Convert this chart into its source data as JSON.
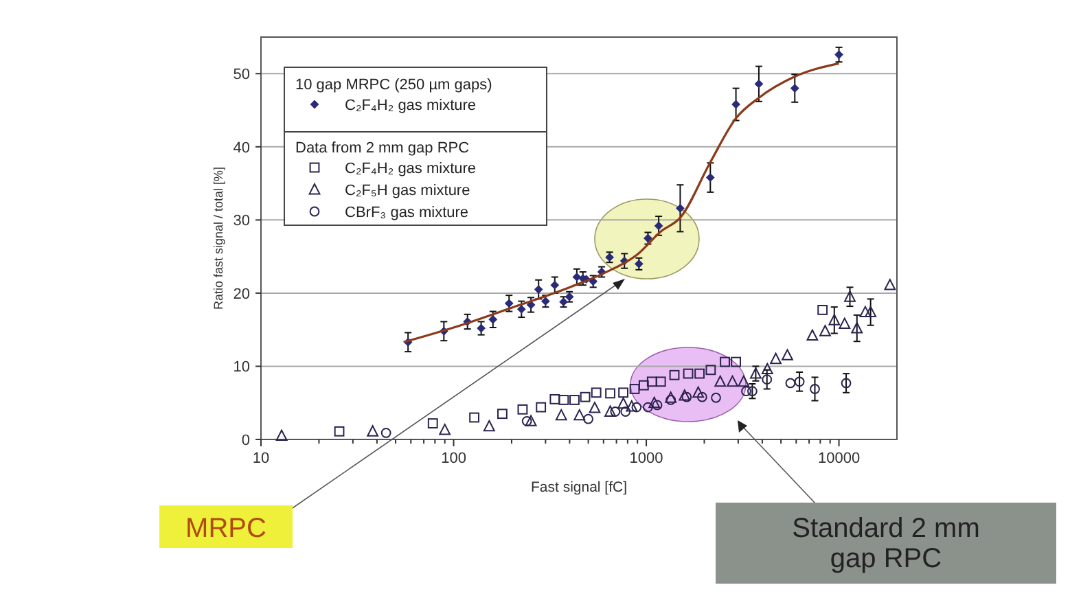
{
  "chart_data": {
    "type": "scatter",
    "xlabel": "Fast signal [fC]",
    "ylabel": "Ratio fast signal / total [%]",
    "log": "x",
    "grid": "y",
    "legend": "top left",
    "legend_title": "10 gap MRPC (250 µm gaps)",
    "xlim": [
      10,
      20000
    ],
    "ylim": [
      0,
      55
    ],
    "xticks": [
      10,
      {
        "value": 20,
        "label": null
      },
      {
        "value": 30,
        "label": null
      },
      {
        "value": 40,
        "label": null
      },
      {
        "value": 50,
        "label": null
      },
      {
        "value": 60,
        "label": null
      },
      {
        "value": 70,
        "label": null
      },
      {
        "value": 80,
        "label": null
      },
      {
        "value": 90,
        "label": null
      },
      100,
      {
        "value": 200,
        "label": null
      },
      {
        "value": 300,
        "label": null
      },
      {
        "value": 400,
        "label": null
      },
      {
        "value": 500,
        "label": null
      },
      {
        "value": 600,
        "label": null
      },
      {
        "value": 700,
        "label": null
      },
      {
        "value": 800,
        "label": null
      },
      {
        "value": 900,
        "label": null
      },
      1000,
      {
        "value": 2000,
        "label": null
      },
      {
        "value": 3000,
        "label": null
      },
      {
        "value": 4000,
        "label": null
      },
      {
        "value": 5000,
        "label": null
      },
      {
        "value": 6000,
        "label": null
      },
      {
        "value": 7000,
        "label": null
      },
      {
        "value": 8000,
        "label": null
      },
      {
        "value": 9000,
        "label": null
      },
      10000
    ],
    "yticks": [
      0,
      10,
      20,
      30,
      40,
      50
    ],
    "annotations": [
      "Data from 2 mm gap RPC",
      "MRPC",
      "Standard 2 mm gap RPC"
    ],
    "series": [
      {
        "name": "C₂F₄H₂ gas mixture",
        "color": "#2a2a7a",
        "marker": "diamond",
        "x": [
          58,
          89,
          118,
          139,
          160,
          194,
          225,
          252,
          276,
          300,
          335,
          372,
          399,
          436,
          469,
          488,
          530,
          587,
          645,
          770,
          916,
          1020,
          1160,
          1500,
          2150,
          2920,
          3840,
          5900,
          10000
        ],
        "values": [
          13.3,
          14.8,
          16.1,
          15.2,
          16.4,
          18.6,
          17.8,
          18.4,
          20.5,
          18.9,
          21.1,
          18.8,
          19.5,
          22.2,
          22.0,
          21.9,
          21.6,
          22.9,
          24.9,
          24.4,
          24.0,
          27.5,
          29.2,
          31.6,
          35.8,
          45.8,
          48.6,
          48.0,
          52.6
        ],
        "errors": [
          1.3,
          1.3,
          1,
          0.9,
          1.1,
          1.1,
          1.1,
          1,
          1.3,
          0.8,
          1.1,
          0.7,
          0.7,
          1.1,
          0.9,
          null,
          0.8,
          0.7,
          0.7,
          1,
          0.8,
          0.8,
          1.3,
          3.2,
          2,
          2.2,
          2.4,
          1.9,
          1
        ]
      },
      {
        "type": "line",
        "color": "#8b3a1a",
        "marker": "none",
        "x": [
          55,
          100,
          200,
          400,
          600,
          900,
          1200,
          1500,
          2150,
          2920,
          3840,
          5900,
          10000
        ],
        "values": [
          13.3,
          15.3,
          18.0,
          20.8,
          22.7,
          25.3,
          28.5,
          30.3,
          37.9,
          43.9,
          46.7,
          49.6,
          51.4
        ]
      },
      {
        "name": "C₂F₄H₂ gas mixture",
        "color": "#2a2250",
        "marker": "square",
        "x": [
          25.5,
          78,
          128,
          179,
          228,
          284,
          335,
          373,
          424,
          482,
          550,
          650,
          760,
          870,
          970,
          1070,
          1190,
          1400,
          1650,
          1890,
          2160,
          2560,
          2920,
          8220
        ],
        "values": [
          1.1,
          2.2,
          3.0,
          3.5,
          4.1,
          4.4,
          5.5,
          5.4,
          5.4,
          5.8,
          6.4,
          6.3,
          6.4,
          6.9,
          7.4,
          7.9,
          7.9,
          8.8,
          9.0,
          9.0,
          9.5,
          10.6,
          10.6,
          17.7
        ]
      },
      {
        "name": "C₂F₅H gas mixture",
        "color": "#2a2250",
        "marker": "triangle",
        "x": [
          12.8,
          38,
          90,
          153,
          252,
          362,
          450,
          540,
          650,
          760,
          840,
          1100,
          1340,
          1580,
          1860,
          2420,
          2800,
          3200,
          3700,
          4250,
          4700,
          5400,
          7280,
          8480,
          9460,
          10700,
          11400,
          12400,
          13700,
          14600,
          18400
        ],
        "values": [
          0.5,
          1.1,
          1.3,
          1.8,
          2.5,
          3.3,
          3.3,
          4.3,
          3.8,
          4.9,
          4.5,
          5.0,
          5.7,
          6.0,
          6.4,
          7.9,
          7.9,
          7.9,
          9.0,
          9.6,
          11.0,
          11.5,
          14.2,
          14.8,
          16.3,
          15.8,
          19.5,
          15.2,
          17.4,
          17.4,
          21.1
        ],
        "errors": [
          null,
          null,
          null,
          null,
          null,
          null,
          null,
          null,
          null,
          null,
          null,
          null,
          null,
          null,
          null,
          null,
          null,
          null,
          1,
          null,
          null,
          null,
          null,
          null,
          1.8,
          null,
          1.3,
          1.8,
          null,
          1.8,
          null
        ]
      },
      {
        "name": "CBrF₃ gas mixture",
        "color": "#2a2250",
        "marker": "circle",
        "x": [
          44.6,
          240,
          500,
          690,
          780,
          890,
          1020,
          1140,
          1340,
          1620,
          1950,
          2300,
          3300,
          3550,
          4230,
          5600,
          6240,
          7500,
          10900
        ],
        "values": [
          0.9,
          2.5,
          2.8,
          3.8,
          3.8,
          4.4,
          4.4,
          4.7,
          5.4,
          5.8,
          5.8,
          5.7,
          6.6,
          6.6,
          8.2,
          7.7,
          7.9,
          6.9,
          7.7
        ],
        "errors": [
          null,
          null,
          null,
          null,
          null,
          null,
          null,
          null,
          null,
          null,
          null,
          null,
          null,
          1,
          1.3,
          null,
          1.3,
          1.6,
          1.3
        ]
      }
    ]
  }
}
